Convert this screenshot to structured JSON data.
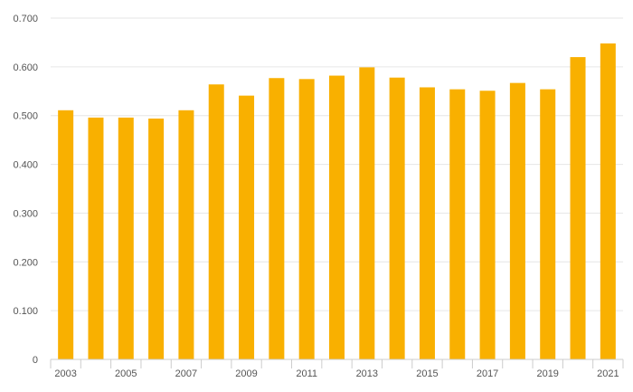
{
  "chart_data": {
    "type": "bar",
    "categories": [
      "2003",
      "2004",
      "2005",
      "2006",
      "2007",
      "2008",
      "2009",
      "2010",
      "2011",
      "2012",
      "2013",
      "2014",
      "2015",
      "2016",
      "2017",
      "2018",
      "2019",
      "2020",
      "2021"
    ],
    "values": [
      0.511,
      0.496,
      0.496,
      0.494,
      0.511,
      0.564,
      0.541,
      0.577,
      0.575,
      0.582,
      0.599,
      0.578,
      0.558,
      0.554,
      0.551,
      0.567,
      0.554,
      0.62,
      0.648
    ],
    "x_tick_labels": [
      "2003",
      "2005",
      "2007",
      "2009",
      "2011",
      "2013",
      "2015",
      "2017",
      "2019",
      "2021"
    ],
    "y_tick_labels": [
      "0",
      "0.100",
      "0.200",
      "0.300",
      "0.400",
      "0.500",
      "0.600",
      "0.700"
    ],
    "ylim": [
      0,
      0.7
    ],
    "grid": true,
    "colors": {
      "bar": "#F9B000",
      "grid": "#e6e6e6",
      "axis": "#cccccc",
      "text": "#555555"
    }
  }
}
